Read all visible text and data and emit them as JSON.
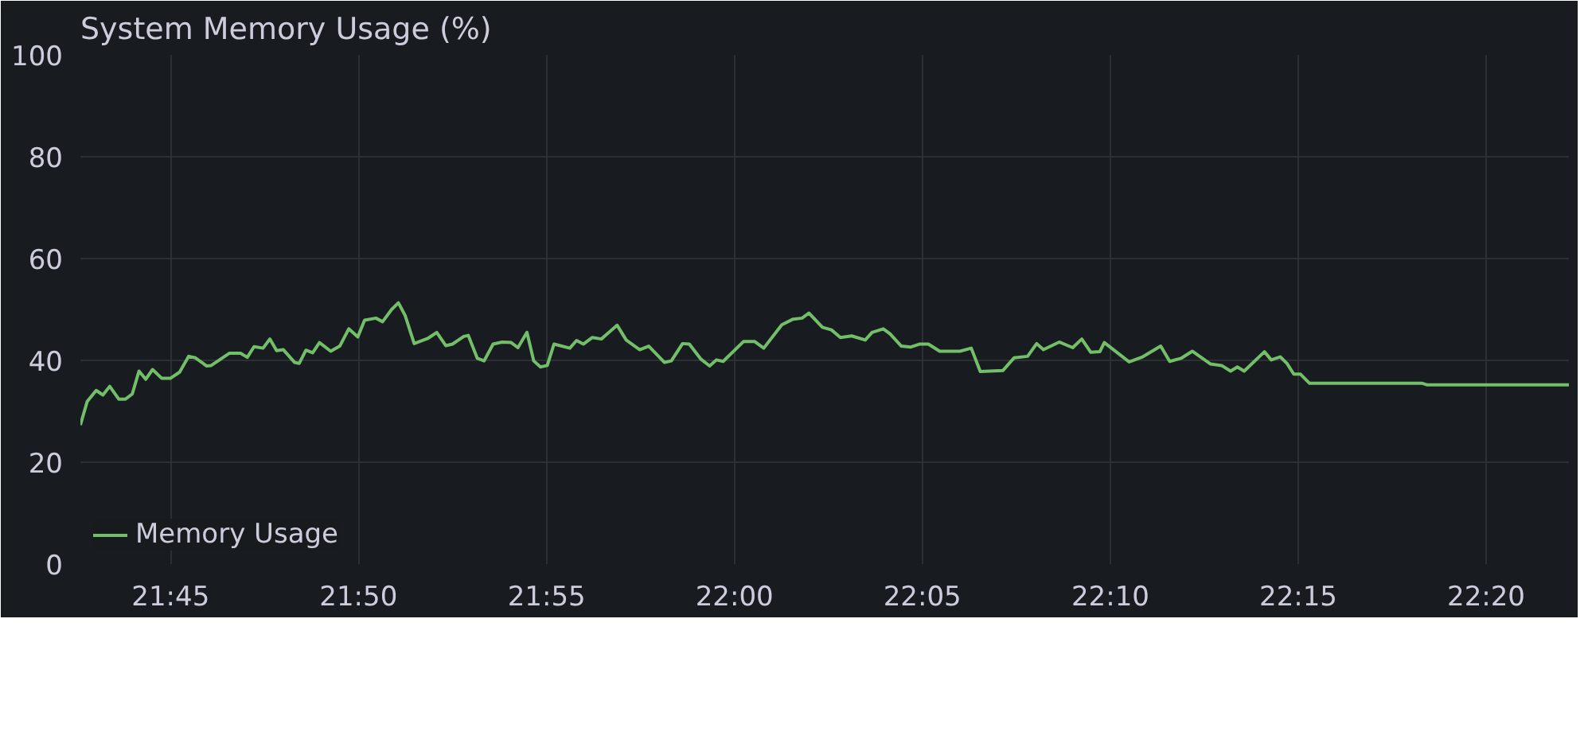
{
  "chart_data": {
    "type": "line",
    "title": "System Memory Usage (%)",
    "x": [
      21.71,
      21.713,
      21.717,
      21.72,
      21.723,
      21.727,
      21.73,
      21.733,
      21.736,
      21.739,
      21.742,
      21.746,
      21.75,
      21.754,
      21.758,
      21.761,
      21.766,
      21.768,
      21.776,
      21.781,
      21.784,
      21.787,
      21.791,
      21.794,
      21.797,
      21.8,
      21.805,
      21.807,
      21.81,
      21.813,
      21.816,
      21.821,
      21.825,
      21.829,
      21.833,
      21.836,
      21.841,
      21.844,
      21.848,
      21.851,
      21.854,
      21.858,
      21.864,
      21.868,
      21.872,
      21.875,
      21.88,
      21.882,
      21.886,
      21.889,
      21.893,
      21.897,
      21.901,
      21.904,
      21.908,
      21.911,
      21.914,
      21.917,
      21.92,
      21.927,
      21.93,
      21.933,
      21.937,
      21.941,
      21.948,
      21.952,
      21.958,
      21.962,
      21.969,
      21.972,
      21.977,
      21.98,
      21.985,
      21.989,
      21.992,
      21.995,
      22.004,
      22.009,
      22.013,
      22.021,
      22.026,
      22.03,
      22.033,
      22.039,
      22.043,
      22.047,
      22.052,
      22.058,
      22.061,
      22.066,
      22.069,
      22.074,
      22.078,
      22.082,
      22.086,
      22.091,
      22.1,
      22.105,
      22.109,
      22.119,
      22.124,
      22.13,
      22.134,
      22.137,
      22.144,
      22.15,
      22.154,
      22.158,
      22.162,
      22.164,
      22.175,
      22.181,
      22.189,
      22.193,
      22.198,
      22.203,
      22.211,
      22.216,
      22.22,
      22.223,
      22.226,
      22.235,
      22.238,
      22.242,
      22.245,
      22.248,
      22.251,
      22.255,
      22.305,
      22.307,
      22.37
    ],
    "series": [
      {
        "name": "Memory Usage",
        "color": "#73bf69",
        "values": [
          27.3,
          31.9,
          34.1,
          33.2,
          34.9,
          32.4,
          32.4,
          33.4,
          37.9,
          36.3,
          38.2,
          36.5,
          36.5,
          37.7,
          40.8,
          40.5,
          38.9,
          39.0,
          41.4,
          41.4,
          40.6,
          42.7,
          42.4,
          44.2,
          41.9,
          42.1,
          39.6,
          39.4,
          42.0,
          41.5,
          43.5,
          41.8,
          42.8,
          46.2,
          44.6,
          47.9,
          48.3,
          47.6,
          50.0,
          51.3,
          48.8,
          43.3,
          44.3,
          45.5,
          42.9,
          43.2,
          44.7,
          44.9,
          40.4,
          39.9,
          43.2,
          43.6,
          43.5,
          42.5,
          45.5,
          39.9,
          38.7,
          39.0,
          43.2,
          42.4,
          43.9,
          43.2,
          44.5,
          44.2,
          46.9,
          44.0,
          42.1,
          42.8,
          39.6,
          39.9,
          43.3,
          43.2,
          40.3,
          38.9,
          40.1,
          39.8,
          43.7,
          43.7,
          42.4,
          47.0,
          48.1,
          48.3,
          49.3,
          46.5,
          46.0,
          44.5,
          44.8,
          44.0,
          45.5,
          46.2,
          45.2,
          42.8,
          42.6,
          43.2,
          43.2,
          41.8,
          41.8,
          42.4,
          37.8,
          38.0,
          40.5,
          40.8,
          43.3,
          42.1,
          43.6,
          42.5,
          44.2,
          41.6,
          41.7,
          43.5,
          39.7,
          40.7,
          42.8,
          39.8,
          40.4,
          41.8,
          39.3,
          39.0,
          37.9,
          38.7,
          37.9,
          41.7,
          40.1,
          40.7,
          39.4,
          37.3,
          37.3,
          35.5,
          35.5,
          35.2,
          35.2
        ]
      }
    ],
    "xlim": [
      21.71,
      22.37
    ],
    "xticks": [
      {
        "value": 21.75,
        "label": "21:45"
      },
      {
        "value": 21.8333,
        "label": "21:50"
      },
      {
        "value": 21.9167,
        "label": "21:55"
      },
      {
        "value": 22.0,
        "label": "22:00"
      },
      {
        "value": 22.0833,
        "label": "22:05"
      },
      {
        "value": 22.1667,
        "label": "22:10"
      },
      {
        "value": 22.25,
        "label": "22:15"
      },
      {
        "value": 22.3333,
        "label": "22:20"
      }
    ],
    "ylim": [
      0,
      100
    ],
    "yticks": [
      0,
      20,
      40,
      60,
      80,
      100
    ],
    "grid": true,
    "legend": "bottom left",
    "marker": "none",
    "line_style": "solid"
  }
}
